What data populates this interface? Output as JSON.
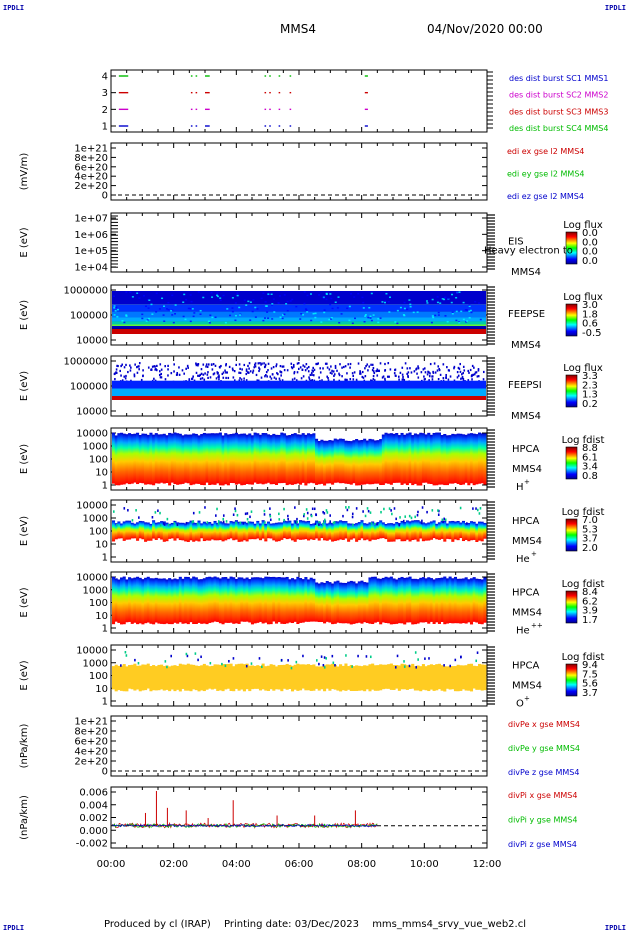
{
  "corner_marks": {
    "tl": "IPDLI",
    "tr": "IPDLI",
    "bl": "IPDLI",
    "br": "IPDLI"
  },
  "header": {
    "spacecraft": "MMS4",
    "datetime": "04/Nov/2020 00:00"
  },
  "footer": {
    "produced_by": "Produced by cl (IRAP)",
    "printing_date": "Printing date: 03/Dec/2023",
    "file": "mms_mms4_srvy_vue_web2.cl"
  },
  "colors": {
    "blue": "#0000cc",
    "magenta": "#cc00cc",
    "red": "#cc0000",
    "green": "#00bb00",
    "black": "#000000"
  },
  "chart_data": [
    {
      "type": "table",
      "panel": "burst",
      "yticks": [
        "4",
        "3",
        "2",
        "1"
      ],
      "legend": [
        {
          "label": "des dist burst SC1 MMS1",
          "color": "#0000cc"
        },
        {
          "label": "des dist burst SC2 MMS2",
          "color": "#cc00cc"
        },
        {
          "label": "des dist burst SC3 MMS3",
          "color": "#cc0000"
        },
        {
          "label": "des dist burst SC4 MMS4",
          "color": "#00bb00"
        }
      ],
      "intervals_hours": [
        [
          0.25,
          0.55
        ],
        [
          2.55,
          2.6
        ],
        [
          2.7,
          2.75
        ],
        [
          3.0,
          3.15
        ],
        [
          4.9,
          4.95
        ],
        [
          5.05,
          5.1
        ],
        [
          5.35,
          5.4
        ],
        [
          5.7,
          5.75
        ],
        [
          8.1,
          8.2
        ]
      ]
    },
    {
      "type": "line",
      "panel": "edi-e",
      "ylabel": "(mV/m)",
      "yticks": [
        "1e+21",
        "8e+20",
        "6e+20",
        "4e+20",
        "2e+20",
        "0"
      ],
      "legend": [
        {
          "label": "edi ex gse l2 MMS4",
          "color": "#cc0000"
        },
        {
          "label": "edi ey gse l2 MMS4",
          "color": "#00bb00"
        },
        {
          "label": "edi ez gse l2 MMS4",
          "color": "#0000cc"
        }
      ]
    },
    {
      "type": "heatmap",
      "panel": "eis",
      "ylabel": "E (eV)",
      "yticks": [
        "1e+07",
        "1e+06",
        "1e+05",
        "1e+04"
      ],
      "instrument": "EIS",
      "species": "Heavy electron to",
      "sc": "MMS4",
      "colorbar_title": "Log flux",
      "colorbar_ticks": [
        "0.0",
        "0.0",
        "0.0",
        "0.0"
      ]
    },
    {
      "type": "heatmap",
      "panel": "feeps-e",
      "ylabel": "E (eV)",
      "yticks": [
        "1000000",
        "100000",
        "10000"
      ],
      "instrument": "FEEPSE",
      "sc": "MMS4",
      "colorbar_title": "Log flux",
      "colorbar_ticks": [
        "3.0",
        "1.8",
        "0.6",
        "-0.5"
      ]
    },
    {
      "type": "heatmap",
      "panel": "feeps-i",
      "ylabel": "E (eV)",
      "yticks": [
        "1000000",
        "100000",
        "10000"
      ],
      "instrument": "FEEPSI",
      "sc": "MMS4",
      "colorbar_title": "Log flux",
      "colorbar_ticks": [
        "3.3",
        "2.3",
        "1.3",
        "0.2"
      ]
    },
    {
      "type": "heatmap",
      "panel": "hpca-h",
      "ylabel": "E (eV)",
      "yticks": [
        "10000",
        "1000",
        "100",
        "10",
        "1"
      ],
      "instrument": "HPCA",
      "sc": "MMS4",
      "ion": "H",
      "charge": "+",
      "colorbar_title": "Log fdist",
      "colorbar_ticks": [
        "8.8",
        "6.1",
        "3.4",
        "0.8"
      ]
    },
    {
      "type": "heatmap",
      "panel": "hpca-he",
      "ylabel": "E (eV)",
      "yticks": [
        "10000",
        "1000",
        "100",
        "10",
        "1"
      ],
      "instrument": "HPCA",
      "sc": "MMS4",
      "ion": "He",
      "charge": "+",
      "colorbar_title": "Log fdist",
      "colorbar_ticks": [
        "7.0",
        "5.3",
        "3.7",
        "2.0"
      ]
    },
    {
      "type": "heatmap",
      "panel": "hpca-he2",
      "ylabel": "E (eV)",
      "yticks": [
        "10000",
        "1000",
        "100",
        "10",
        "1"
      ],
      "instrument": "HPCA",
      "sc": "MMS4",
      "ion": "He",
      "charge": "++",
      "colorbar_title": "Log fdist",
      "colorbar_ticks": [
        "8.4",
        "6.2",
        "3.9",
        "1.7"
      ]
    },
    {
      "type": "heatmap",
      "panel": "hpca-o",
      "ylabel": "E (eV)",
      "yticks": [
        "10000",
        "1000",
        "100",
        "10",
        "1"
      ],
      "instrument": "HPCA",
      "sc": "MMS4",
      "ion": "O",
      "charge": "+",
      "colorbar_title": "Log fdist",
      "colorbar_ticks": [
        "9.4",
        "7.5",
        "5.6",
        "3.7"
      ]
    },
    {
      "type": "line",
      "panel": "divpe",
      "ylabel": "(nPa/km)",
      "yticks": [
        "1e+21",
        "8e+20",
        "6e+20",
        "4e+20",
        "2e+20",
        "0"
      ],
      "legend": [
        {
          "label": "divPe x gse MMS4",
          "color": "#cc0000"
        },
        {
          "label": "divPe y gse MMS4",
          "color": "#00bb00"
        },
        {
          "label": "divPe z gse MMS4",
          "color": "#0000cc"
        }
      ]
    },
    {
      "type": "line",
      "panel": "divpi",
      "ylabel": "(nPa/km)",
      "yticks": [
        "0.006",
        "0.004",
        "0.002",
        "0.000",
        "-0.002"
      ],
      "ylim": [
        -0.003,
        0.007
      ],
      "legend": [
        {
          "label": "divPi x gse MMS4",
          "color": "#cc0000"
        },
        {
          "label": "divPi y gse MMS4",
          "color": "#00bb00"
        },
        {
          "label": "divPi z gse MMS4",
          "color": "#0000cc"
        }
      ],
      "spikes_x": [
        {
          "t": 1.1,
          "v": 0.0025
        },
        {
          "t": 1.45,
          "v": 0.0068
        },
        {
          "t": 1.8,
          "v": 0.0035
        },
        {
          "t": 2.4,
          "v": 0.003
        },
        {
          "t": 3.1,
          "v": 0.0015
        },
        {
          "t": 3.9,
          "v": 0.005
        },
        {
          "t": 5.3,
          "v": 0.002
        },
        {
          "t": 6.5,
          "v": 0.002
        },
        {
          "t": 7.8,
          "v": 0.003
        }
      ],
      "data_end_hour": 8.5
    }
  ],
  "time_axis": {
    "range_hours": [
      0,
      12
    ],
    "ticks": [
      "00:00",
      "02:00",
      "04:00",
      "06:00",
      "08:00",
      "10:00",
      "12:00"
    ]
  }
}
